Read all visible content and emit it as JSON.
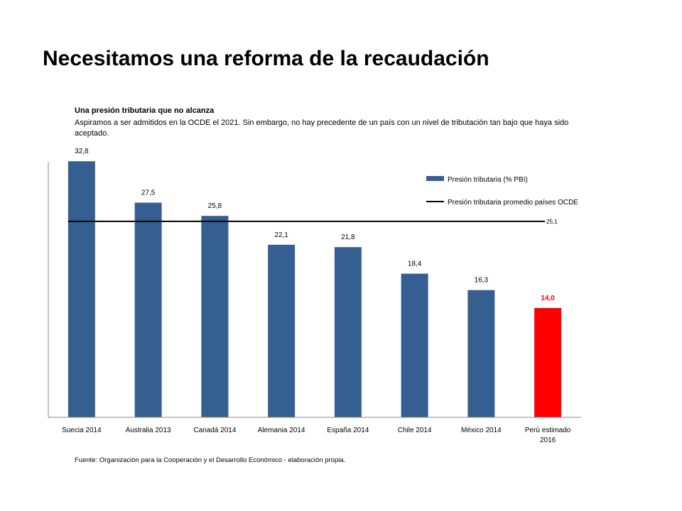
{
  "slide": {
    "title": "Necesitamos una reforma de la recaudación",
    "subtitle": "Una presión tributaria que no alcanza",
    "description": "Aspiramos a ser admitidos en la OCDE el 2021. Sin embargo, no hay precedente de un país con un nivel de tributación tan bajo que haya sido aceptado.",
    "source": "Fuente: Organización para la Cooperación y el Desarrollo Económico - elaboración propia."
  },
  "chart_data": {
    "type": "bar",
    "categories": [
      "Suecia 2014",
      "Australia 2013",
      "Canadá 2014",
      "Alemania 2014",
      "España 2014",
      "Chile 2014",
      "México 2014",
      "Perú estimado 2016"
    ],
    "category_lines": [
      [
        "Suecia 2014"
      ],
      [
        "Australia 2013"
      ],
      [
        "Canadá 2014"
      ],
      [
        "Alemania 2014"
      ],
      [
        "España 2014"
      ],
      [
        "Chile 2014"
      ],
      [
        "México 2014"
      ],
      [
        "Perú estimado",
        "2016"
      ]
    ],
    "series": [
      {
        "name": "Presión tributaria (% PBI)",
        "values": [
          32.8,
          27.5,
          25.8,
          22.1,
          21.8,
          18.4,
          16.3,
          14.0
        ],
        "labels": [
          "32,8",
          "27,5",
          "25,8",
          "22,1",
          "21,8",
          "18,4",
          "16,3",
          "14,0"
        ]
      }
    ],
    "reference_line": {
      "name": "Presión tributaria promedio países OCDE",
      "value": 25.1,
      "label": "25,1"
    },
    "ylim": [
      0,
      35
    ],
    "grid": false,
    "legend_position": "top-right",
    "colors": {
      "bar": "#365f91",
      "highlight_bar": "#ff0000",
      "highlight_label": "#ff0000",
      "reference_line": "#000000",
      "axis": "#888888"
    },
    "highlight_index": 7
  }
}
